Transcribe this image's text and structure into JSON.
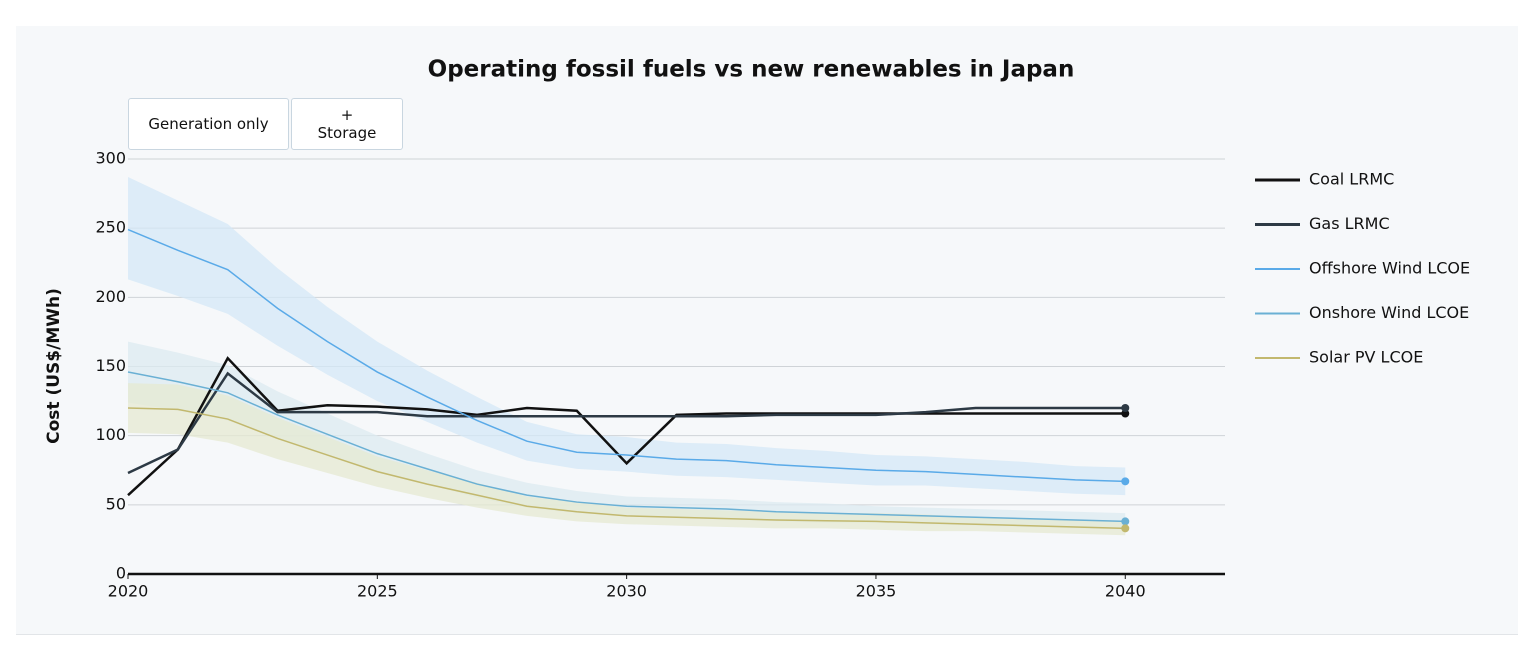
{
  "controls": [
    "Generation only",
    "+ Storage"
  ],
  "chart_data": {
    "type": "line",
    "title": "Operating fossil fuels vs new renewables in Japan",
    "y_label": "Cost (US$/MWh)",
    "x": [
      2020,
      2021,
      2022,
      2023,
      2024,
      2025,
      2026,
      2027,
      2028,
      2029,
      2030,
      2031,
      2032,
      2033,
      2034,
      2035,
      2036,
      2037,
      2038,
      2039,
      2040
    ],
    "xlim": [
      2020,
      2042
    ],
    "xticks": [
      2020,
      2025,
      2030,
      2035,
      2040
    ],
    "ylim": [
      0,
      300
    ],
    "yticks": [
      0,
      50,
      100,
      150,
      200,
      250,
      300
    ],
    "grid": true,
    "legend": "right",
    "series": [
      {
        "name": "Coal LRMC",
        "color": "#111111",
        "width": 2.5,
        "values": [
          57,
          90,
          156,
          118,
          122,
          121,
          119,
          115,
          120,
          118,
          80,
          115,
          116,
          116,
          116,
          116,
          116,
          116,
          116,
          116,
          116
        ]
      },
      {
        "name": "Gas LRMC",
        "color": "#2d3a45",
        "width": 2.5,
        "values": [
          73,
          90,
          145,
          117,
          117,
          117,
          114,
          114,
          114,
          114,
          114,
          114,
          114,
          115,
          115,
          115,
          117,
          120,
          120,
          120,
          120
        ]
      },
      {
        "name": "Offshore Wind LCOE",
        "color": "#5aaae8",
        "width": 1.5,
        "band_color": "#d4e8f7",
        "values": [
          249,
          234,
          220,
          192,
          168,
          146,
          128,
          111,
          96,
          88,
          86,
          83,
          82,
          79,
          77,
          75,
          74,
          72,
          70,
          68,
          67
        ],
        "band_high": [
          287,
          270,
          253,
          221,
          193,
          168,
          147,
          128,
          110,
          101,
          99,
          95,
          94,
          91,
          89,
          86,
          85,
          83,
          81,
          78,
          77
        ],
        "band_low": [
          213,
          201,
          188,
          165,
          144,
          125,
          110,
          95,
          82,
          76,
          74,
          71,
          70,
          68,
          66,
          64,
          64,
          62,
          60,
          58,
          57
        ]
      },
      {
        "name": "Onshore Wind LCOE",
        "color": "#6ab0d4",
        "width": 1.5,
        "band_color": "#dcebf0",
        "values": [
          146,
          139,
          131,
          115,
          101,
          87,
          76,
          65,
          57,
          52,
          49,
          48,
          47,
          45,
          44,
          43,
          42,
          41,
          40,
          39,
          38
        ],
        "band_high": [
          168,
          160,
          151,
          132,
          116,
          100,
          87,
          75,
          66,
          60,
          56,
          55,
          54,
          52,
          51,
          49,
          48,
          47,
          46,
          45,
          44
        ],
        "band_low": [
          124,
          118,
          111,
          98,
          86,
          74,
          65,
          55,
          48,
          44,
          42,
          41,
          40,
          38,
          37,
          37,
          36,
          35,
          34,
          33,
          32
        ]
      },
      {
        "name": "Solar PV LCOE",
        "color": "#c2b86e",
        "width": 1.5,
        "band_color": "#e6ead2",
        "values": [
          120,
          119,
          112,
          98,
          86,
          74,
          65,
          57,
          49,
          45,
          42,
          41,
          40,
          39,
          38.5,
          38,
          37,
          36,
          35,
          34,
          33
        ],
        "band_high": [
          138,
          137,
          129,
          113,
          99,
          85,
          75,
          66,
          56,
          52,
          48,
          47,
          46,
          45,
          44,
          44,
          43,
          41,
          40,
          39,
          38
        ],
        "band_low": [
          102,
          101,
          95,
          83,
          73,
          63,
          55,
          48,
          42,
          38,
          36,
          35,
          34,
          33,
          33,
          32,
          31,
          31,
          30,
          29,
          28
        ]
      }
    ]
  }
}
